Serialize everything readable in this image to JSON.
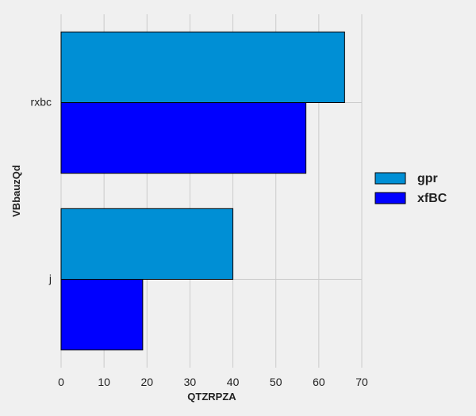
{
  "chart_data": {
    "type": "bar",
    "orientation": "horizontal",
    "categories": [
      "rxbc",
      "j"
    ],
    "series": [
      {
        "name": "gpr",
        "values": [
          66,
          40
        ],
        "color": "#008fd5"
      },
      {
        "name": "xfBC",
        "values": [
          57,
          19
        ],
        "color": "#0000ff"
      }
    ],
    "xlabel": "QTZRPZA",
    "ylabel": "VBbauzQd",
    "xlim": [
      0,
      70
    ],
    "xticks": [
      0,
      10,
      20,
      30,
      40,
      50,
      60,
      70
    ],
    "grid": true,
    "legend_position": "right"
  }
}
